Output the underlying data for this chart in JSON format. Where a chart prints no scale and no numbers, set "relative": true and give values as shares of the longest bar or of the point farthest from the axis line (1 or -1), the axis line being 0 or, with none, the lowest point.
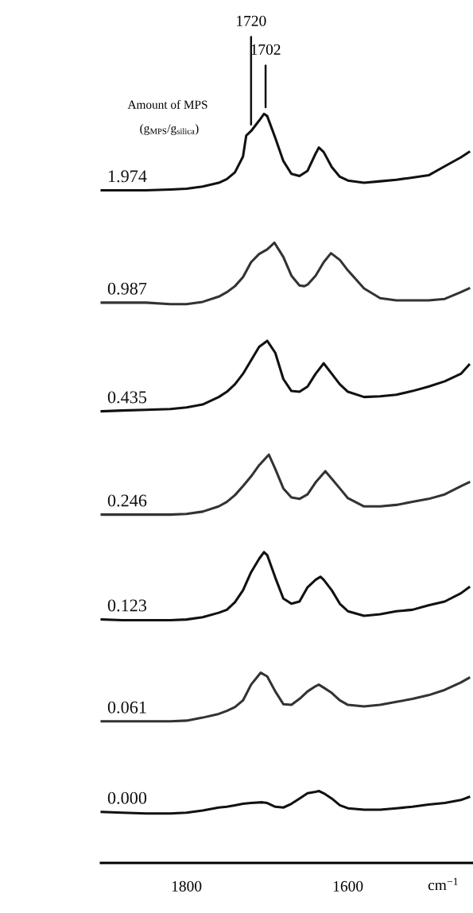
{
  "chart_data": {
    "type": "line",
    "relative": true,
    "xlim": [
      1906,
      1445
    ],
    "xticks": [
      1800,
      1600
    ],
    "xlabel": "cm$^{−1}$",
    "annotations": [
      "Amount of MPS",
      "(g$_{MPS}$/g$_{silica}$)",
      {
        "text": "1720",
        "x": 1720,
        "y": 0.977
      },
      {
        "text": "1702",
        "x": 1702,
        "y": 1.0
      }
    ],
    "series": [
      {
        "name": "1.974",
        "color": "#111111",
        "x": [
          1905,
          1880,
          1850,
          1820,
          1800,
          1780,
          1760,
          1750,
          1740,
          1730,
          1726,
          1720,
          1710,
          1704,
          1700,
          1690,
          1680,
          1670,
          1660,
          1650,
          1640,
          1636,
          1630,
          1620,
          1610,
          1600,
          1580,
          1560,
          1540,
          1520,
          1500,
          1480,
          1460,
          1450
        ],
        "values": [
          0.898,
          0.898,
          0.898,
          0.899,
          0.9,
          0.903,
          0.908,
          0.913,
          0.922,
          0.943,
          0.971,
          0.977,
          0.991,
          1.0,
          0.997,
          0.968,
          0.937,
          0.92,
          0.917,
          0.924,
          0.947,
          0.955,
          0.949,
          0.929,
          0.916,
          0.911,
          0.908,
          0.91,
          0.912,
          0.915,
          0.918,
          0.93,
          0.942,
          0.949
        ]
      },
      {
        "name": "0.987",
        "color": "#333333",
        "x": [
          1905,
          1880,
          1850,
          1820,
          1800,
          1780,
          1760,
          1750,
          1740,
          1730,
          1720,
          1710,
          1700,
          1691,
          1680,
          1670,
          1660,
          1654,
          1650,
          1640,
          1630,
          1621,
          1610,
          1600,
          1580,
          1560,
          1540,
          1520,
          1500,
          1480,
          1460,
          1450
        ],
        "values": [
          0.748,
          0.748,
          0.748,
          0.746,
          0.746,
          0.749,
          0.756,
          0.762,
          0.77,
          0.782,
          0.802,
          0.813,
          0.819,
          0.828,
          0.809,
          0.784,
          0.771,
          0.77,
          0.772,
          0.784,
          0.802,
          0.814,
          0.805,
          0.791,
          0.767,
          0.754,
          0.751,
          0.751,
          0.751,
          0.753,
          0.762,
          0.767
        ]
      },
      {
        "name": "0.435",
        "color": "#111111",
        "x": [
          1905,
          1880,
          1850,
          1820,
          1800,
          1780,
          1760,
          1750,
          1740,
          1730,
          1720,
          1710,
          1700,
          1690,
          1680,
          1670,
          1660,
          1650,
          1640,
          1630,
          1620,
          1610,
          1600,
          1580,
          1560,
          1540,
          1520,
          1500,
          1480,
          1460,
          1450
        ],
        "values": [
          0.603,
          0.604,
          0.605,
          0.606,
          0.608,
          0.612,
          0.622,
          0.629,
          0.639,
          0.653,
          0.671,
          0.689,
          0.697,
          0.681,
          0.646,
          0.63,
          0.629,
          0.636,
          0.653,
          0.667,
          0.653,
          0.639,
          0.629,
          0.622,
          0.623,
          0.625,
          0.63,
          0.636,
          0.643,
          0.653,
          0.665
        ]
      },
      {
        "name": "0.246",
        "color": "#333333",
        "x": [
          1905,
          1880,
          1850,
          1820,
          1800,
          1780,
          1760,
          1750,
          1740,
          1730,
          1720,
          1710,
          1698,
          1690,
          1680,
          1670,
          1660,
          1650,
          1640,
          1628,
          1620,
          1610,
          1600,
          1580,
          1560,
          1540,
          1520,
          1500,
          1480,
          1460,
          1450
        ],
        "values": [
          0.465,
          0.465,
          0.465,
          0.465,
          0.466,
          0.469,
          0.476,
          0.482,
          0.491,
          0.503,
          0.516,
          0.531,
          0.545,
          0.526,
          0.5,
          0.488,
          0.486,
          0.492,
          0.508,
          0.523,
          0.513,
          0.5,
          0.487,
          0.476,
          0.476,
          0.478,
          0.482,
          0.486,
          0.492,
          0.503,
          0.508
        ]
      },
      {
        "name": "0.123",
        "color": "#111111",
        "x": [
          1905,
          1880,
          1850,
          1820,
          1800,
          1780,
          1760,
          1750,
          1740,
          1730,
          1720,
          1710,
          1704,
          1700,
          1690,
          1680,
          1670,
          1660,
          1650,
          1640,
          1634,
          1630,
          1620,
          1610,
          1600,
          1580,
          1560,
          1540,
          1520,
          1500,
          1480,
          1460,
          1450
        ],
        "values": [
          0.325,
          0.324,
          0.324,
          0.324,
          0.325,
          0.328,
          0.334,
          0.338,
          0.348,
          0.364,
          0.388,
          0.406,
          0.415,
          0.411,
          0.381,
          0.353,
          0.346,
          0.349,
          0.368,
          0.378,
          0.382,
          0.378,
          0.364,
          0.346,
          0.336,
          0.33,
          0.332,
          0.336,
          0.338,
          0.344,
          0.349,
          0.36,
          0.368
        ]
      },
      {
        "name": "0.061",
        "color": "#333333",
        "x": [
          1905,
          1880,
          1850,
          1820,
          1800,
          1780,
          1760,
          1750,
          1740,
          1730,
          1720,
          1708,
          1700,
          1690,
          1680,
          1670,
          1660,
          1650,
          1640,
          1636,
          1630,
          1620,
          1610,
          1600,
          1580,
          1560,
          1540,
          1520,
          1500,
          1480,
          1460,
          1450
        ],
        "values": [
          0.189,
          0.189,
          0.189,
          0.189,
          0.19,
          0.194,
          0.199,
          0.203,
          0.208,
          0.217,
          0.238,
          0.254,
          0.249,
          0.229,
          0.212,
          0.211,
          0.219,
          0.229,
          0.236,
          0.238,
          0.234,
          0.227,
          0.217,
          0.211,
          0.209,
          0.211,
          0.215,
          0.219,
          0.224,
          0.231,
          0.241,
          0.247
        ]
      },
      {
        "name": "0.000",
        "color": "#111111",
        "x": [
          1905,
          1880,
          1850,
          1820,
          1800,
          1780,
          1760,
          1750,
          1740,
          1730,
          1720,
          1706,
          1700,
          1690,
          1680,
          1670,
          1660,
          1650,
          1640,
          1636,
          1630,
          1620,
          1610,
          1600,
          1580,
          1560,
          1540,
          1520,
          1500,
          1480,
          1460,
          1450
        ],
        "values": [
          0.068,
          0.067,
          0.066,
          0.066,
          0.067,
          0.07,
          0.074,
          0.075,
          0.077,
          0.079,
          0.08,
          0.081,
          0.08,
          0.075,
          0.074,
          0.079,
          0.086,
          0.093,
          0.095,
          0.096,
          0.093,
          0.086,
          0.077,
          0.073,
          0.071,
          0.071,
          0.073,
          0.075,
          0.078,
          0.08,
          0.084,
          0.088
        ]
      }
    ]
  }
}
